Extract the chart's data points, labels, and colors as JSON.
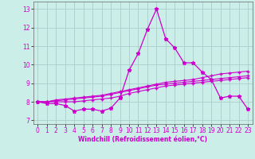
{
  "title": "",
  "xlabel": "Windchill (Refroidissement éolien,°C)",
  "ylabel": "",
  "background_color": "#cceee8",
  "grid_color": "#aacccc",
  "line_color": "#cc00cc",
  "x": [
    0,
    1,
    2,
    3,
    4,
    5,
    6,
    7,
    8,
    9,
    10,
    11,
    12,
    13,
    14,
    15,
    16,
    17,
    18,
    19,
    20,
    21,
    22,
    23
  ],
  "line1": [
    8.0,
    7.9,
    7.9,
    7.8,
    7.5,
    7.6,
    7.6,
    7.5,
    7.65,
    8.2,
    9.7,
    10.6,
    11.9,
    13.0,
    11.4,
    10.9,
    10.1,
    10.1,
    9.6,
    9.2,
    8.2,
    8.3,
    8.3,
    7.6
  ],
  "line2": [
    8.0,
    8.0,
    8.0,
    8.0,
    8.0,
    8.05,
    8.1,
    8.15,
    8.2,
    8.3,
    8.45,
    8.55,
    8.65,
    8.75,
    8.85,
    8.9,
    8.95,
    9.0,
    9.05,
    9.1,
    9.15,
    9.2,
    9.25,
    9.3
  ],
  "line3": [
    8.0,
    8.0,
    8.05,
    8.1,
    8.15,
    8.2,
    8.25,
    8.3,
    8.4,
    8.5,
    8.6,
    8.7,
    8.8,
    8.9,
    8.95,
    9.0,
    9.05,
    9.1,
    9.15,
    9.2,
    9.25,
    9.3,
    9.35,
    9.4
  ],
  "line4": [
    8.0,
    8.0,
    8.1,
    8.15,
    8.2,
    8.25,
    8.3,
    8.35,
    8.45,
    8.55,
    8.65,
    8.75,
    8.85,
    8.95,
    9.05,
    9.1,
    9.15,
    9.2,
    9.3,
    9.4,
    9.5,
    9.55,
    9.6,
    9.65
  ],
  "ylim": [
    6.8,
    13.4
  ],
  "xlim": [
    -0.5,
    23.5
  ],
  "yticks": [
    7,
    8,
    9,
    10,
    11,
    12,
    13
  ],
  "xticks": [
    0,
    1,
    2,
    3,
    4,
    5,
    6,
    7,
    8,
    9,
    10,
    11,
    12,
    13,
    14,
    15,
    16,
    17,
    18,
    19,
    20,
    21,
    22,
    23
  ]
}
